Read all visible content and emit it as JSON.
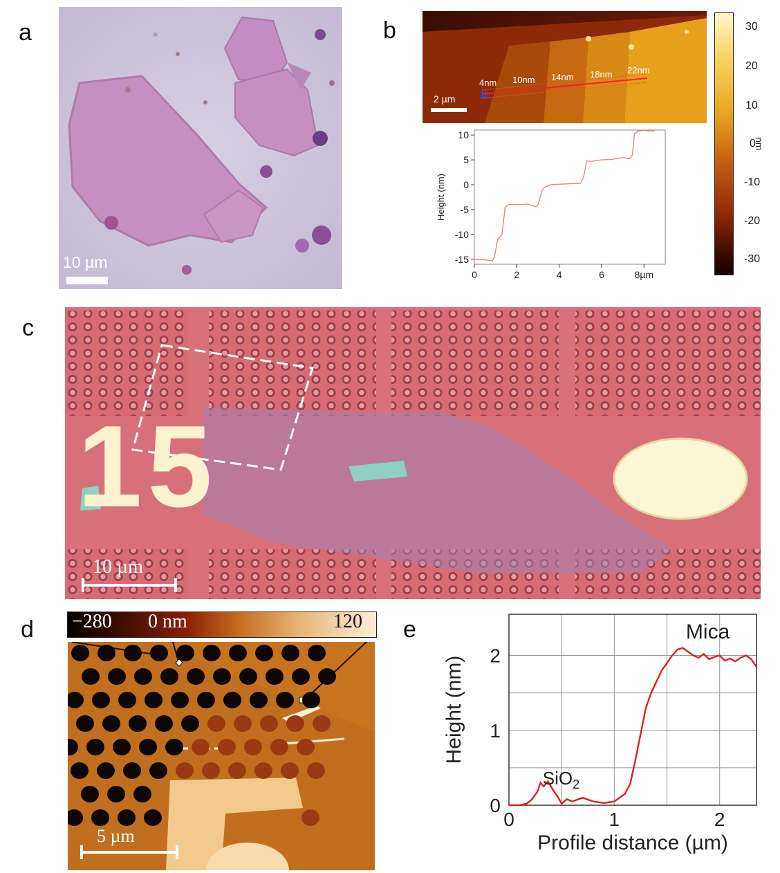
{
  "panels": {
    "a": {
      "letter": "a",
      "scale_bar": "10 µm"
    },
    "b": {
      "letter": "b",
      "scale_bar": "2 µm",
      "step_labels": [
        "4nm",
        "10nm",
        "14nm",
        "18nm",
        "22nm"
      ],
      "colorbar_unit": "nm",
      "colorbar_ticks": [
        "30",
        "20",
        "10",
        "0",
        "-10",
        "-20",
        "-30"
      ]
    },
    "c": {
      "letter": "c",
      "scale_bar": "10 µm",
      "marker_number": "15"
    },
    "d": {
      "letter": "d",
      "scale_bar": "5 µm",
      "colorbar_labels": [
        "−280",
        "0 nm",
        "120"
      ]
    },
    "e": {
      "letter": "e",
      "annotation_mica": "Mica",
      "annotation_sio2_base": "SiO",
      "annotation_sio2_sub": "2"
    }
  },
  "colors": {
    "profile_b": "#e58a77",
    "profile_e": "#dd1e1e",
    "optical_a_bg": "#cdc3dc",
    "optical_c_bg": "#d96874",
    "afm_d_bg": "#c8741f"
  },
  "chart_data": [
    {
      "type": "line",
      "panel": "b",
      "xlabel": "",
      "x_unit_label": "8µm",
      "ylabel": "Height (nm)",
      "xlim": [
        0,
        9
      ],
      "ylim": [
        -16,
        11
      ],
      "xticks": [
        "0",
        "2",
        "4",
        "6",
        "8µm"
      ],
      "yticks": [
        "10",
        "5",
        "0",
        "-5",
        "-10",
        "-15"
      ],
      "series": [
        {
          "x": [
            0.0,
            0.5,
            0.85,
            0.95,
            1.1,
            1.3,
            1.45,
            1.6,
            2.0,
            2.5,
            2.9,
            3.0,
            3.2,
            3.35,
            3.6,
            4.0,
            4.5,
            5.0,
            5.15,
            5.3,
            5.5,
            6.0,
            6.5,
            7.0,
            7.3,
            7.45,
            7.55,
            7.7,
            8.0,
            8.3,
            8.5
          ],
          "y": [
            -15,
            -15.1,
            -15.3,
            -14.5,
            -11,
            -10,
            -4.5,
            -4,
            -4,
            -3.9,
            -4.4,
            -4.1,
            -1,
            -0.4,
            0,
            0.1,
            0.2,
            0.3,
            1.5,
            4.8,
            4.7,
            5,
            5.1,
            5.5,
            5.2,
            6,
            10.2,
            10.8,
            10.9,
            10.8,
            10.8
          ]
        }
      ]
    },
    {
      "type": "line",
      "panel": "e",
      "xlabel": "Profile distance (µm)",
      "ylabel": "Height (nm)",
      "xlim": [
        0,
        2.35
      ],
      "ylim": [
        0,
        2.55
      ],
      "xticks": [
        "0",
        "1",
        "2"
      ],
      "yticks": [
        "0",
        "1",
        "2"
      ],
      "series": [
        {
          "x": [
            0.0,
            0.1,
            0.17,
            0.22,
            0.27,
            0.3,
            0.33,
            0.37,
            0.42,
            0.46,
            0.5,
            0.55,
            0.6,
            0.7,
            0.8,
            0.9,
            1.0,
            1.05,
            1.1,
            1.15,
            1.2,
            1.25,
            1.3,
            1.35,
            1.4,
            1.45,
            1.5,
            1.55,
            1.6,
            1.65,
            1.7,
            1.75,
            1.8,
            1.85,
            1.9,
            1.95,
            2.0,
            2.05,
            2.1,
            2.15,
            2.2,
            2.25,
            2.3,
            2.35
          ],
          "y": [
            0.0,
            0.0,
            0.02,
            0.08,
            0.18,
            0.3,
            0.25,
            0.32,
            0.2,
            0.12,
            0.02,
            0.08,
            0.05,
            0.1,
            0.05,
            0.03,
            0.05,
            0.1,
            0.15,
            0.28,
            0.6,
            0.95,
            1.3,
            1.5,
            1.65,
            1.8,
            1.9,
            2.0,
            2.08,
            2.1,
            2.05,
            2.0,
            1.97,
            2.02,
            1.95,
            1.98,
            2.0,
            1.93,
            1.96,
            1.92,
            1.97,
            2.0,
            1.95,
            1.85
          ]
        }
      ]
    }
  ]
}
